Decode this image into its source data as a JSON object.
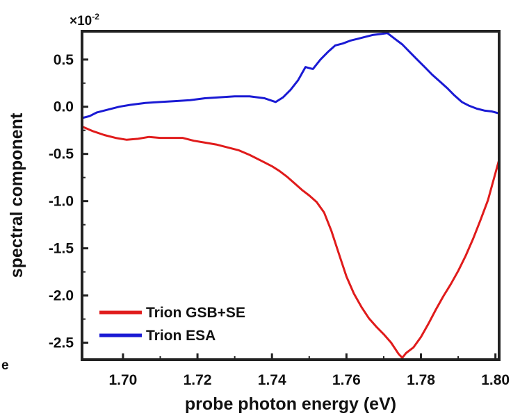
{
  "chart_data": {
    "type": "line",
    "panel_label": "e",
    "xlabel": "probe photon energy (eV)",
    "ylabel": "spectral component",
    "y_multiplier": "×10",
    "y_multiplier_exponent": "-2",
    "xlim": [
      1.689,
      1.801
    ],
    "ylim": [
      -2.68,
      0.8
    ],
    "x_ticks": [
      1.7,
      1.72,
      1.74,
      1.76,
      1.78,
      1.8
    ],
    "x_tick_labels": [
      "1.70",
      "1.72",
      "1.74",
      "1.76",
      "1.78",
      "1.80"
    ],
    "y_ticks": [
      0.5,
      0.0,
      -0.5,
      -1.0,
      -1.5,
      -2.0,
      -2.5
    ],
    "y_tick_labels": [
      "0.5",
      "0.0",
      "-0.5",
      "-1.0",
      "-1.5",
      "-2.0",
      "-2.5"
    ],
    "grid": false,
    "legend_position": "bottom-left",
    "series": [
      {
        "name": "Trion GSB+SE",
        "color": "#e01b1b",
        "x": [
          1.689,
          1.692,
          1.695,
          1.698,
          1.701,
          1.704,
          1.707,
          1.71,
          1.713,
          1.716,
          1.719,
          1.722,
          1.725,
          1.728,
          1.731,
          1.734,
          1.737,
          1.74,
          1.742,
          1.744,
          1.746,
          1.748,
          1.75,
          1.752,
          1.754,
          1.756,
          1.758,
          1.76,
          1.762,
          1.764,
          1.766,
          1.768,
          1.77,
          1.772,
          1.774,
          1.775,
          1.776,
          1.778,
          1.78,
          1.782,
          1.784,
          1.786,
          1.788,
          1.79,
          1.792,
          1.794,
          1.796,
          1.798,
          1.801
        ],
        "values": [
          -0.21,
          -0.26,
          -0.3,
          -0.33,
          -0.35,
          -0.34,
          -0.32,
          -0.33,
          -0.33,
          -0.33,
          -0.36,
          -0.38,
          -0.4,
          -0.43,
          -0.46,
          -0.51,
          -0.57,
          -0.63,
          -0.68,
          -0.74,
          -0.81,
          -0.88,
          -0.94,
          -1.01,
          -1.12,
          -1.32,
          -1.56,
          -1.8,
          -1.98,
          -2.12,
          -2.24,
          -2.33,
          -2.41,
          -2.5,
          -2.62,
          -2.66,
          -2.61,
          -2.55,
          -2.44,
          -2.3,
          -2.15,
          -2.01,
          -1.88,
          -1.74,
          -1.58,
          -1.4,
          -1.2,
          -0.99,
          -0.56
        ]
      },
      {
        "name": "Trion ESA",
        "color": "#1a1ad4",
        "x": [
          1.689,
          1.691,
          1.693,
          1.696,
          1.699,
          1.702,
          1.706,
          1.71,
          1.714,
          1.718,
          1.722,
          1.726,
          1.73,
          1.734,
          1.738,
          1.741,
          1.743,
          1.745,
          1.747,
          1.749,
          1.751,
          1.753,
          1.755,
          1.757,
          1.759,
          1.761,
          1.763,
          1.765,
          1.767,
          1.769,
          1.771,
          1.773,
          1.775,
          1.777,
          1.779,
          1.781,
          1.783,
          1.785,
          1.787,
          1.789,
          1.791,
          1.793,
          1.795,
          1.797,
          1.799,
          1.801
        ],
        "values": [
          -0.12,
          -0.1,
          -0.06,
          -0.03,
          0.0,
          0.02,
          0.04,
          0.05,
          0.06,
          0.07,
          0.09,
          0.1,
          0.11,
          0.11,
          0.09,
          0.05,
          0.1,
          0.18,
          0.28,
          0.42,
          0.4,
          0.5,
          0.58,
          0.65,
          0.67,
          0.7,
          0.72,
          0.74,
          0.76,
          0.77,
          0.78,
          0.72,
          0.66,
          0.58,
          0.5,
          0.42,
          0.34,
          0.27,
          0.2,
          0.12,
          0.05,
          0.01,
          -0.02,
          -0.04,
          -0.05,
          -0.07
        ]
      }
    ]
  }
}
